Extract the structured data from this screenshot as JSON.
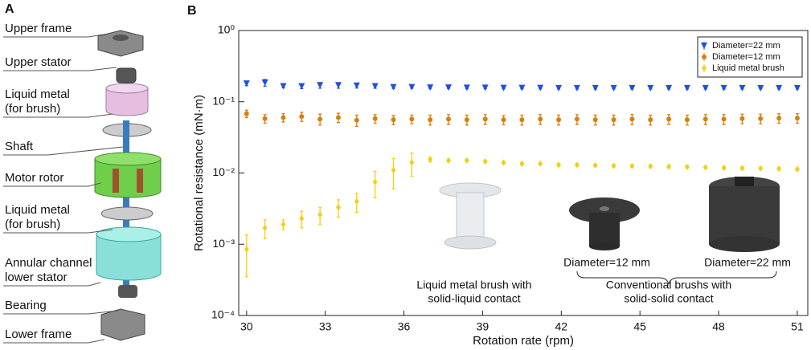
{
  "panel_labels": [
    "A",
    "B"
  ],
  "diagram": {
    "labels": [
      [
        "Upper frame"
      ],
      [
        "Upper stator"
      ],
      [
        "Liquid metal",
        "(for brush)"
      ],
      [
        "Shaft"
      ],
      [
        "Motor rotor"
      ],
      [
        "Liquid metal",
        "(for brush)"
      ],
      [
        "Annular channel",
        "lower stator"
      ],
      [
        "Bearing"
      ],
      [
        "Lower frame"
      ]
    ]
  },
  "chart_data": {
    "type": "scatter",
    "x_label": "Rotation rate (rpm)",
    "y_label": "Rotational resistance (mN·m)",
    "x": [
      30,
      30.7,
      31.4,
      32.1,
      32.8,
      33.5,
      34.2,
      34.9,
      35.6,
      36.3,
      37,
      37.7,
      38.4,
      39.1,
      39.8,
      40.5,
      41.2,
      41.9,
      42.6,
      43.3,
      44,
      44.7,
      45.4,
      46.1,
      46.8,
      47.5,
      48.2,
      48.9,
      49.6,
      50.3,
      51
    ],
    "xlim": [
      29.7,
      51.4
    ],
    "xticks": [
      30,
      33,
      36,
      39,
      42,
      45,
      48,
      51
    ],
    "ylim": [
      0.0001,
      1
    ],
    "log_y": true,
    "yticks": [
      {
        "value": 0.0001,
        "label": "10⁻⁴"
      },
      {
        "value": 0.001,
        "label": "10⁻³"
      },
      {
        "value": 0.01,
        "label": "10⁻²"
      },
      {
        "value": 0.1,
        "label": "10⁻¹"
      },
      {
        "value": 1,
        "label": "10⁰"
      }
    ],
    "legend": "upper right",
    "series": [
      {
        "name": "Diameter=22 mm",
        "color": "#1f4fe0",
        "marker": "triangle-down",
        "values": [
          0.18,
          0.185,
          0.165,
          0.165,
          0.17,
          0.17,
          0.168,
          0.165,
          0.16,
          0.16,
          0.158,
          0.158,
          0.157,
          0.157,
          0.156,
          0.156,
          0.156,
          0.155,
          0.155,
          0.155,
          0.155,
          0.155,
          0.155,
          0.155,
          0.155,
          0.155,
          0.155,
          0.155,
          0.155,
          0.155,
          0.155
        ],
        "errors": [
          0.012,
          0.02,
          0.008,
          0.012,
          0.015,
          0.015,
          0.012,
          0.01,
          0.006,
          0.005,
          0.004,
          0.004,
          0.004,
          0.004,
          0.004,
          0.004,
          0.004,
          0.004,
          0.004,
          0.004,
          0.004,
          0.004,
          0.004,
          0.004,
          0.004,
          0.004,
          0.004,
          0.004,
          0.004,
          0.004,
          0.004
        ]
      },
      {
        "name": "Diameter=12 mm",
        "color": "#d97f0f",
        "marker": "circle",
        "values": [
          0.068,
          0.058,
          0.06,
          0.062,
          0.057,
          0.06,
          0.055,
          0.058,
          0.056,
          0.057,
          0.056,
          0.057,
          0.056,
          0.057,
          0.056,
          0.056,
          0.057,
          0.056,
          0.057,
          0.056,
          0.056,
          0.057,
          0.056,
          0.057,
          0.056,
          0.057,
          0.057,
          0.058,
          0.058,
          0.059,
          0.059
        ],
        "errors": [
          0.008,
          0.008,
          0.008,
          0.009,
          0.01,
          0.009,
          0.01,
          0.008,
          0.008,
          0.008,
          0.009,
          0.009,
          0.009,
          0.009,
          0.008,
          0.009,
          0.009,
          0.009,
          0.009,
          0.009,
          0.009,
          0.009,
          0.009,
          0.009,
          0.009,
          0.009,
          0.009,
          0.009,
          0.009,
          0.009,
          0.009
        ]
      },
      {
        "name": "Liquid metal brush",
        "color": "#f5cf10",
        "marker": "diamond",
        "values": [
          0.00085,
          0.0017,
          0.0019,
          0.0023,
          0.0026,
          0.0033,
          0.004,
          0.0075,
          0.011,
          0.014,
          0.0155,
          0.015,
          0.015,
          0.0145,
          0.014,
          0.0135,
          0.0135,
          0.013,
          0.013,
          0.0128,
          0.0126,
          0.0125,
          0.0124,
          0.0123,
          0.0122,
          0.012,
          0.0118,
          0.0117,
          0.0116,
          0.0115,
          0.0113
        ],
        "errors": [
          0.0005,
          0.0005,
          0.0003,
          0.0006,
          0.0007,
          0.0009,
          0.0012,
          0.003,
          0.005,
          0.005,
          0.0012,
          0.0006,
          0.0005,
          0.0005,
          0.0005,
          0.0005,
          0.0005,
          0.0005,
          0.0005,
          0.0005,
          0.0005,
          0.0005,
          0.0005,
          0.0005,
          0.0005,
          0.0005,
          0.0005,
          0.0005,
          0.0005,
          0.0005,
          0.0005
        ]
      }
    ],
    "annotations": [
      "Liquid metal brush with",
      "solid-liquid contact",
      "Diameter=12 mm",
      "Diameter=22 mm",
      "Conventional brushs with",
      "solid-solid contact"
    ]
  }
}
